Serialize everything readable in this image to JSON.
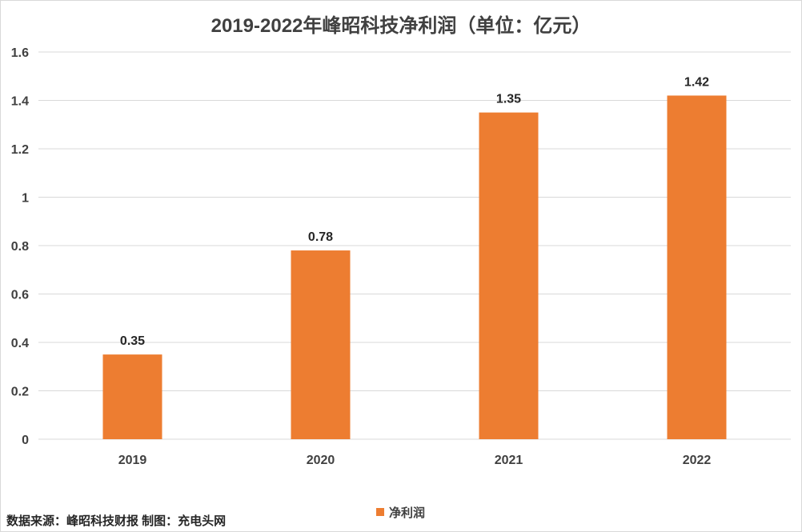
{
  "chart_data": {
    "type": "bar",
    "title": "2019-2022年峰昭科技净利润（单位：亿元）",
    "categories": [
      "2019",
      "2020",
      "2021",
      "2022"
    ],
    "series": [
      {
        "name": "净利润",
        "values": [
          0.35,
          0.78,
          1.35,
          1.42
        ],
        "labels": [
          "0.35",
          "0.78",
          "1.35",
          "1.42"
        ]
      }
    ],
    "ylim": [
      0,
      1.6
    ],
    "y_ticks": [
      0,
      0.2,
      0.4,
      0.6,
      0.8,
      1,
      1.2,
      1.4,
      1.6
    ],
    "y_tick_labels": [
      "0",
      "0.2",
      "0.4",
      "0.6",
      "0.8",
      "1",
      "1.2",
      "1.4",
      "1.6"
    ],
    "grid": true,
    "legend_position": "bottom",
    "bar_color": "#ed7d31",
    "grid_color": "#d9d9d9"
  },
  "footer": {
    "source": "数据来源：峰昭科技财报  制图：充电头网"
  }
}
